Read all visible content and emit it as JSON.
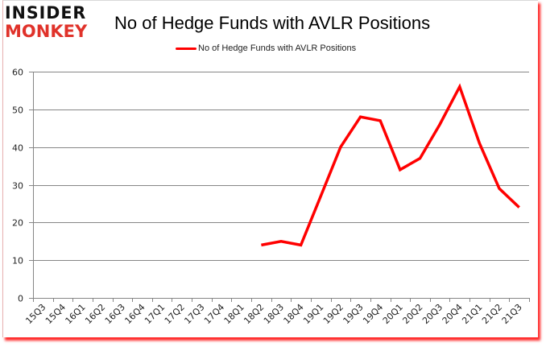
{
  "header": {
    "logo_line1": "INSIDER",
    "logo_line2": "MONKEY",
    "title": "No of Hedge Funds with AVLR Positions"
  },
  "legend": {
    "label": "No of Hedge Funds with AVLR Positions",
    "color": "#ff0000"
  },
  "colors": {
    "line": "#ff0000",
    "grid": "#868686",
    "logo_dark": "#111111",
    "logo_red": "#e0322a"
  },
  "chart_data": {
    "type": "line",
    "title": "No of Hedge Funds with AVLR Positions",
    "xlabel": "",
    "ylabel": "",
    "ylim": [
      0,
      60
    ],
    "yticks": [
      0,
      10,
      20,
      30,
      40,
      50,
      60
    ],
    "grid": true,
    "legend_position": "top",
    "categories": [
      "15Q3",
      "15Q4",
      "16Q1",
      "16Q2",
      "16Q3",
      "16Q4",
      "17Q1",
      "17Q2",
      "17Q3",
      "17Q4",
      "18Q1",
      "18Q2",
      "18Q3",
      "18Q4",
      "19Q1",
      "19Q2",
      "19Q3",
      "19Q4",
      "20Q1",
      "20Q2",
      "20Q3",
      "20Q4",
      "21Q1",
      "21Q2",
      "21Q3"
    ],
    "series": [
      {
        "name": "No of Hedge Funds with AVLR Positions",
        "values": [
          null,
          null,
          null,
          null,
          null,
          null,
          null,
          null,
          null,
          null,
          null,
          14,
          15,
          14,
          27,
          40,
          48,
          47,
          34,
          37,
          46,
          56,
          41,
          29,
          24
        ]
      }
    ]
  }
}
